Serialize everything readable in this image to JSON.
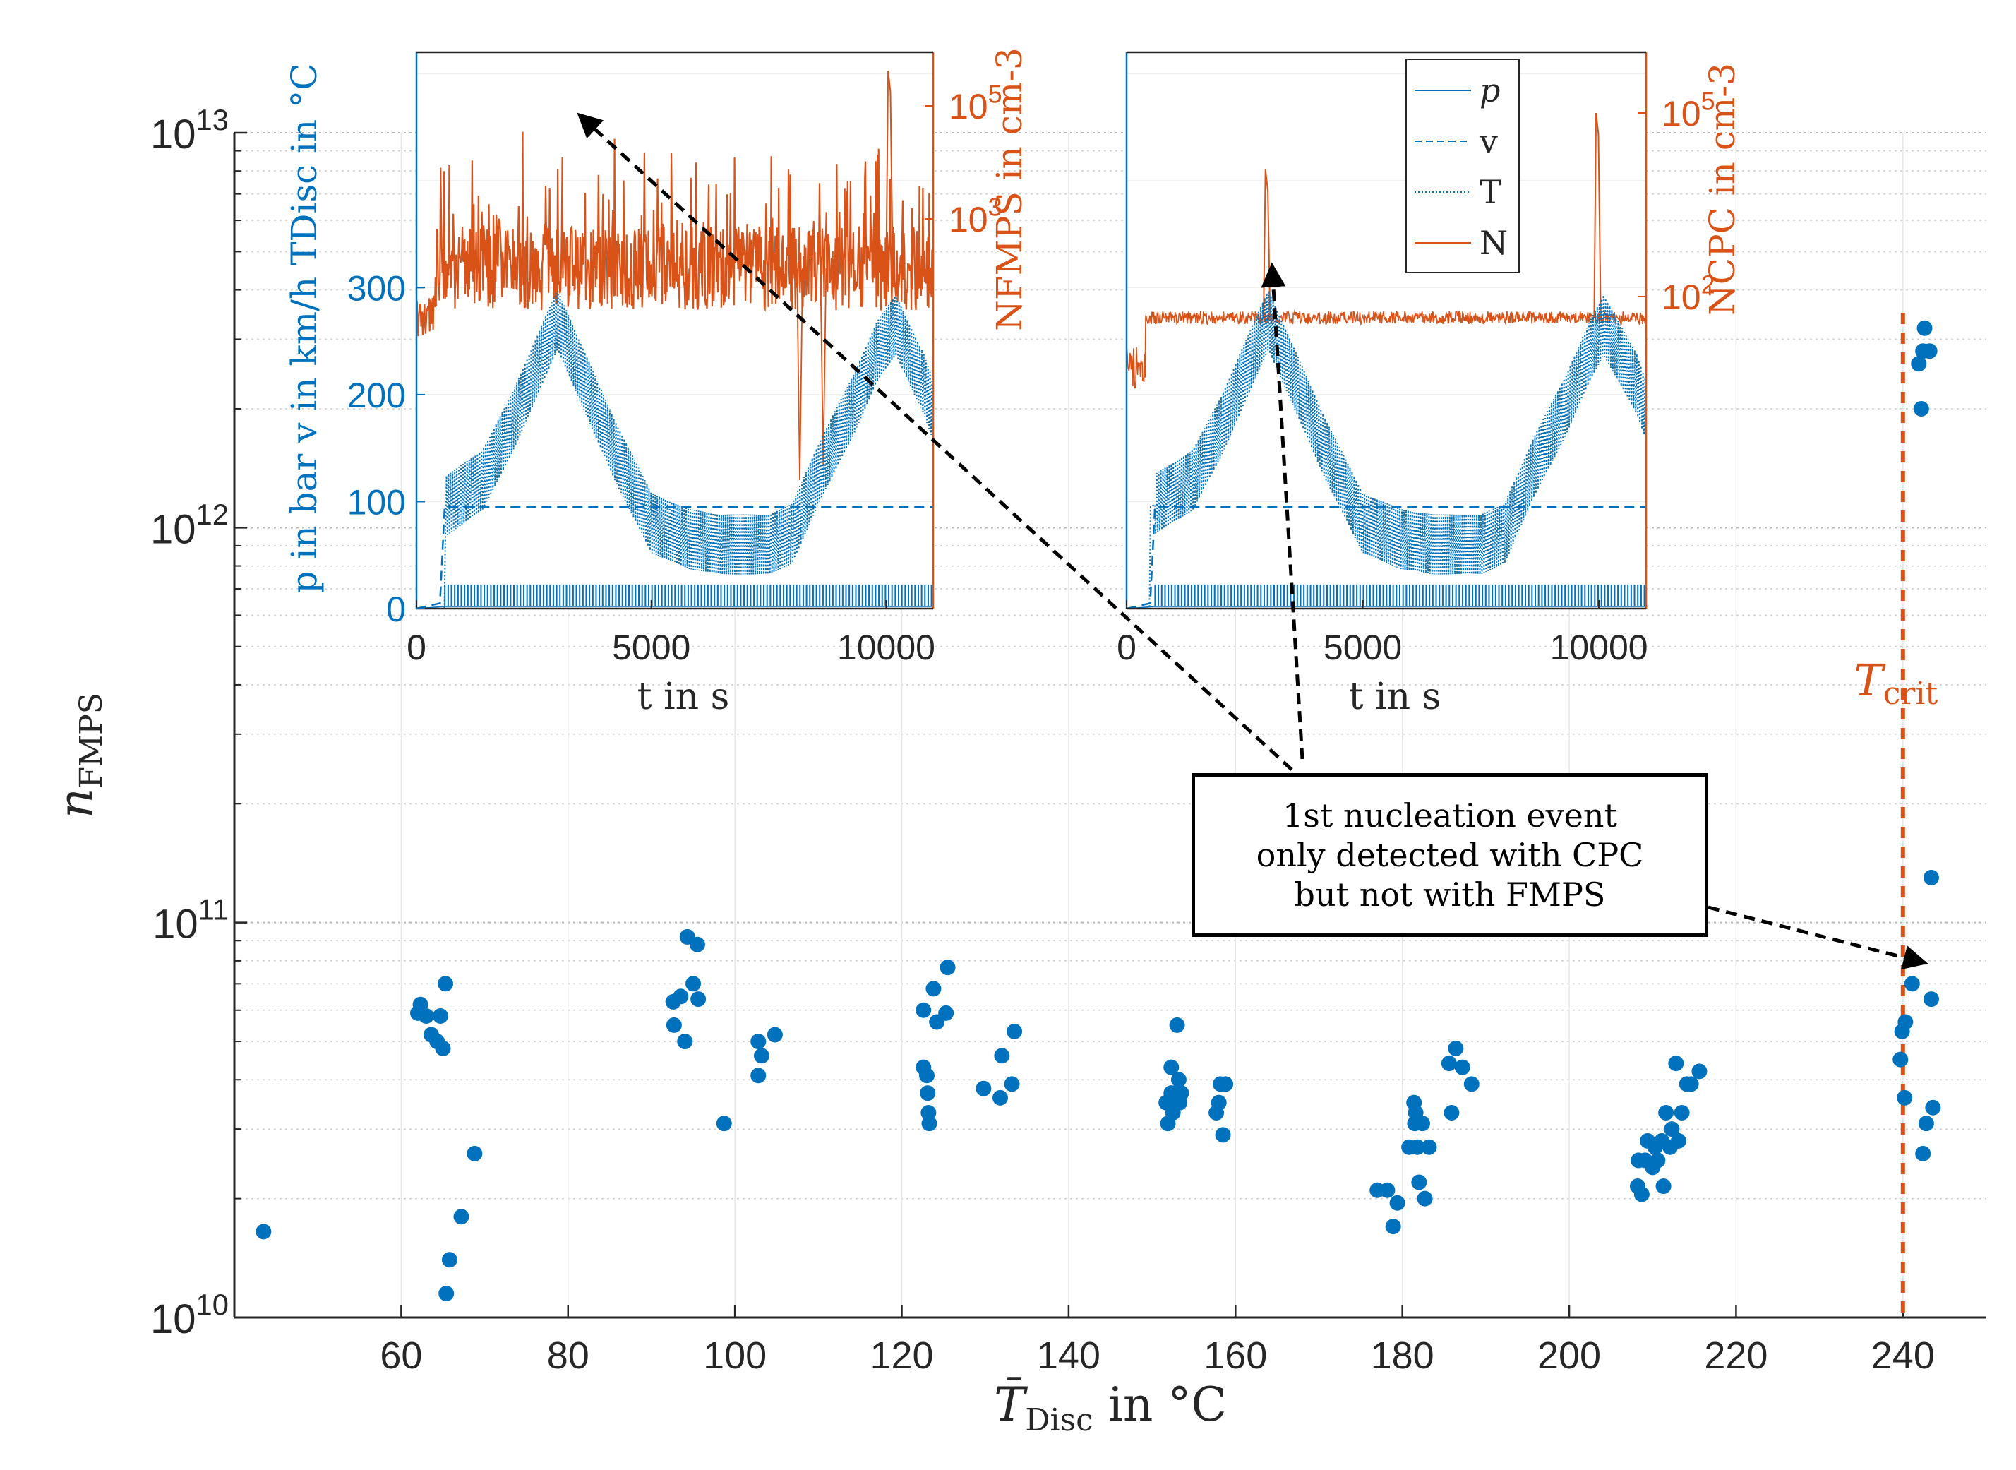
{
  "chart_data": [
    {
      "id": "main",
      "type": "scatter",
      "xlabel": "T̄Disc in °C",
      "ylabel": "nFMPS",
      "xlim": [
        40,
        250
      ],
      "ylim": [
        10000000000.0,
        10000000000000.0
      ],
      "yscale": "log",
      "grid": "y major and minor dotted",
      "xticks": [
        60,
        80,
        100,
        120,
        140,
        160,
        180,
        200,
        220,
        240
      ],
      "ytick_labels": [
        {
          "value": 10000000000.0,
          "base": "10",
          "exp": "10"
        },
        {
          "value": 100000000000.0,
          "base": "10",
          "exp": "11"
        },
        {
          "value": 1000000000000.0,
          "base": "10",
          "exp": "12"
        },
        {
          "value": 10000000000000.0,
          "base": "10",
          "exp": "13"
        }
      ],
      "marker_color": "#0072BD",
      "points": [
        [
          43.5,
          16500000000.0
        ],
        [
          62,
          59000000000.0
        ],
        [
          62.3,
          62000000000.0
        ],
        [
          63,
          58000000000.0
        ],
        [
          63.6,
          52000000000.0
        ],
        [
          64.3,
          50000000000.0
        ],
        [
          64.7,
          58000000000.0
        ],
        [
          65,
          48000000000.0
        ],
        [
          65.3,
          70000000000.0
        ],
        [
          65.8,
          14000000000.0
        ],
        [
          65.4,
          11500000000.0
        ],
        [
          67.2,
          18000000000.0
        ],
        [
          68.8,
          26000000000.0
        ],
        [
          92.6,
          63000000000.0
        ],
        [
          92.7,
          55000000000.0
        ],
        [
          93.5,
          65000000000.0
        ],
        [
          94,
          50000000000.0
        ],
        [
          94.3,
          92000000000.0
        ],
        [
          95,
          70000000000.0
        ],
        [
          95.5,
          88000000000.0
        ],
        [
          95.6,
          64000000000.0
        ],
        [
          98.7,
          31000000000.0
        ],
        [
          102.8,
          50000000000.0
        ],
        [
          102.8,
          41000000000.0
        ],
        [
          103.2,
          46000000000.0
        ],
        [
          104.8,
          52000000000.0
        ],
        [
          122.6,
          60000000000.0
        ],
        [
          122.6,
          43000000000.0
        ],
        [
          123,
          41000000000.0
        ],
        [
          123.1,
          37000000000.0
        ],
        [
          123.2,
          33000000000.0
        ],
        [
          123.3,
          31000000000.0
        ],
        [
          123.8,
          68000000000.0
        ],
        [
          124.2,
          56000000000.0
        ],
        [
          125.3,
          59000000000.0
        ],
        [
          125.5,
          77000000000.0
        ],
        [
          129.8,
          38000000000.0
        ],
        [
          131.8,
          36000000000.0
        ],
        [
          132,
          46000000000.0
        ],
        [
          133.2,
          39000000000.0
        ],
        [
          133.5,
          53000000000.0
        ],
        [
          151.7,
          35000000000.0
        ],
        [
          151.9,
          31000000000.0
        ],
        [
          152.3,
          43000000000.0
        ],
        [
          152.3,
          37000000000.0
        ],
        [
          152.5,
          33000000000.0
        ],
        [
          153,
          55000000000.0
        ],
        [
          153.2,
          40000000000.0
        ],
        [
          153.3,
          35000000000.0
        ],
        [
          153.5,
          37000000000.0
        ],
        [
          157.7,
          33000000000.0
        ],
        [
          158,
          35000000000.0
        ],
        [
          158.2,
          39000000000.0
        ],
        [
          158.5,
          29000000000.0
        ],
        [
          158.8,
          39000000000.0
        ],
        [
          177,
          21000000000.0
        ],
        [
          178.2,
          21000000000.0
        ],
        [
          178.9,
          17000000000.0
        ],
        [
          179.4,
          19500000000.0
        ],
        [
          180.8,
          27000000000.0
        ],
        [
          181.4,
          35000000000.0
        ],
        [
          181.5,
          31000000000.0
        ],
        [
          181.6,
          33000000000.0
        ],
        [
          181.8,
          27000000000.0
        ],
        [
          182,
          22000000000.0
        ],
        [
          182.4,
          31000000000.0
        ],
        [
          182.7,
          20000000000.0
        ],
        [
          183.2,
          27000000000.0
        ],
        [
          185.6,
          44000000000.0
        ],
        [
          185.9,
          33000000000.0
        ],
        [
          186.4,
          48000000000.0
        ],
        [
          187.2,
          43000000000.0
        ],
        [
          188.3,
          39000000000.0
        ],
        [
          208.2,
          21500000000.0
        ],
        [
          208.3,
          25000000000.0
        ],
        [
          208.7,
          20500000000.0
        ],
        [
          209.1,
          25000000000.0
        ],
        [
          209.4,
          28000000000.0
        ],
        [
          210,
          24000000000.0
        ],
        [
          210.3,
          27000000000.0
        ],
        [
          210.6,
          25000000000.0
        ],
        [
          211.1,
          28000000000.0
        ],
        [
          211.3,
          21500000000.0
        ],
        [
          211.6,
          33000000000.0
        ],
        [
          212.1,
          27000000000.0
        ],
        [
          212.3,
          30000000000.0
        ],
        [
          212.8,
          44000000000.0
        ],
        [
          213.1,
          28000000000.0
        ],
        [
          213.5,
          33000000000.0
        ],
        [
          214.1,
          39000000000.0
        ],
        [
          214.6,
          39000000000.0
        ],
        [
          215.6,
          42000000000.0
        ],
        [
          239.7,
          45000000000.0
        ],
        [
          239.9,
          53000000000.0
        ],
        [
          240.3,
          56000000000.0
        ],
        [
          240.2,
          36000000000.0
        ],
        [
          241.1,
          70000000000.0
        ],
        [
          241.9,
          2600000000000.0
        ],
        [
          242.2,
          2000000000000.0
        ],
        [
          242.4,
          2800000000000.0
        ],
        [
          242.6,
          3200000000000.0
        ],
        [
          243.2,
          2800000000000.0
        ],
        [
          243.4,
          130000000000.0
        ],
        [
          243.4,
          64000000000.0
        ],
        [
          243.6,
          34000000000.0
        ],
        [
          242.8,
          31000000000.0
        ],
        [
          242.4,
          26000000000.0
        ]
      ],
      "annotation": {
        "lines": [
          "1st nucleation event",
          "only detected with CPC",
          "but not with FMPS"
        ]
      },
      "threshold": {
        "x": 240,
        "label": "Tcrit",
        "color": "#D95319"
      }
    },
    {
      "id": "inset-left",
      "type": "line",
      "xlabel": "t in s",
      "ylabel_left": "p in bar v in km/h TDisc in °C",
      "ylabel_right": "NFMPS in cm-3",
      "xlim": [
        0,
        11000
      ],
      "xticks": [
        0,
        5000,
        10000
      ],
      "yticks_left": [
        0,
        100,
        200,
        300
      ],
      "yticks_right_labels": [
        {
          "base": "10",
          "exp": "3"
        },
        {
          "base": "10",
          "exp": "5"
        }
      ],
      "left_color": "#0072BD",
      "right_color": "#D95319",
      "T_profile": [
        [
          0,
          0
        ],
        [
          600,
          0
        ],
        [
          600,
          95
        ],
        [
          1400,
          120
        ],
        [
          2000,
          170
        ],
        [
          2600,
          230
        ],
        [
          3000,
          270
        ],
        [
          3500,
          220
        ],
        [
          4200,
          150
        ],
        [
          5000,
          80
        ],
        [
          5800,
          65
        ],
        [
          6500,
          60
        ],
        [
          7500,
          60
        ],
        [
          8000,
          70
        ],
        [
          8600,
          130
        ],
        [
          9300,
          190
        ],
        [
          9800,
          240
        ],
        [
          10200,
          265
        ],
        [
          10800,
          210
        ],
        [
          11000,
          185
        ]
      ],
      "v_level": 95,
      "N_baseline": 800
    },
    {
      "id": "inset-right",
      "type": "line",
      "xlabel": "t in s",
      "ylabel_right": "NCPC in cm-3",
      "xlim": [
        0,
        11000
      ],
      "xticks": [
        0,
        5000,
        10000
      ],
      "yticks_right_labels": [
        {
          "base": "10",
          "exp": "2"
        },
        {
          "base": "10",
          "exp": "5"
        }
      ],
      "legend": [
        "p",
        "v",
        "T",
        "N"
      ],
      "legend_placement": "top-right",
      "T_profile": [
        [
          0,
          0
        ],
        [
          500,
          0
        ],
        [
          500,
          95
        ],
        [
          1400,
          120
        ],
        [
          2000,
          170
        ],
        [
          2600,
          230
        ],
        [
          3000,
          270
        ],
        [
          3500,
          220
        ],
        [
          4200,
          150
        ],
        [
          5000,
          80
        ],
        [
          5800,
          65
        ],
        [
          6500,
          60
        ],
        [
          7500,
          60
        ],
        [
          8000,
          70
        ],
        [
          8600,
          130
        ],
        [
          9300,
          190
        ],
        [
          9800,
          240
        ],
        [
          10100,
          265
        ],
        [
          10800,
          210
        ],
        [
          11000,
          185
        ]
      ],
      "v_level": 95,
      "N_baseline": 120
    }
  ]
}
